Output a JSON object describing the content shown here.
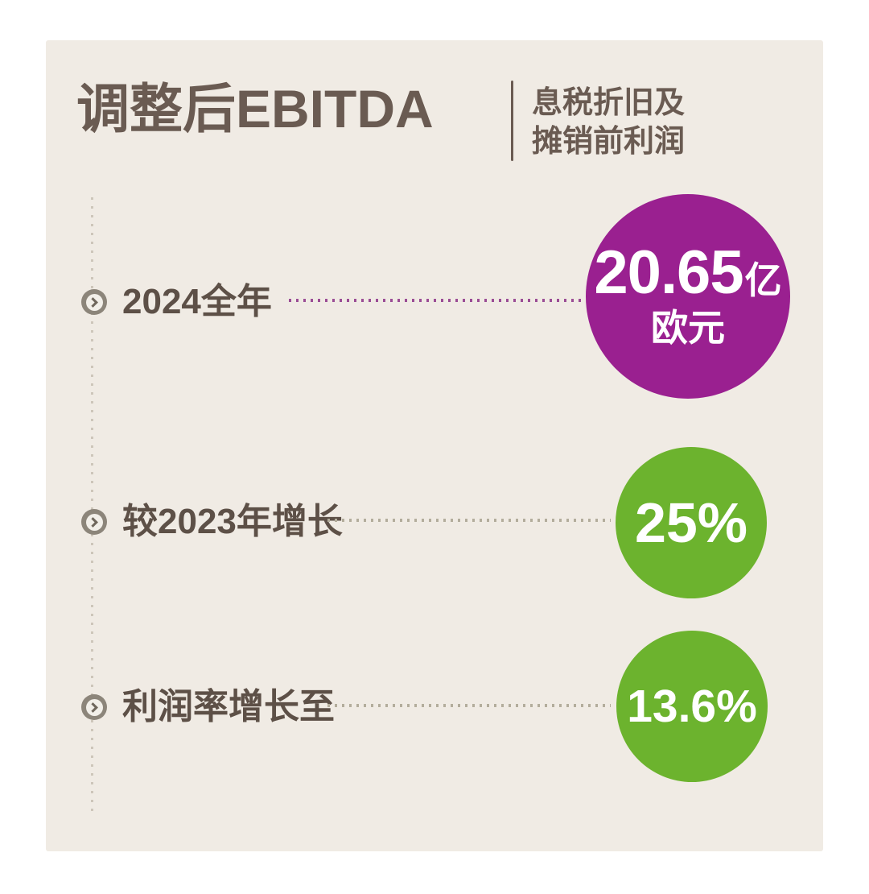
{
  "header": {
    "title": "调整后EBITDA",
    "subtitle_line1": "息税折旧及",
    "subtitle_line2": "摊销前利润"
  },
  "rows": [
    {
      "label": "2024全年",
      "value_main": "20.65",
      "value_unit": "亿",
      "value_sub": "欧元",
      "circle_color": "#9a2090"
    },
    {
      "label": "较2023年增长",
      "value": "25%",
      "circle_color": "#6cb32e"
    },
    {
      "label": "利润率增长至",
      "value": "13.6%",
      "circle_color": "#6cb32e"
    }
  ],
  "colors": {
    "page_bg": "#ffffff",
    "card_bg": "#f0ebe4",
    "heading_brown": "#6a5b52",
    "label_brown": "#5d5047",
    "accent_purple": "#9a2090",
    "accent_green": "#6cb32e",
    "leader_purple": "#9b4d95",
    "leader_olive": "#b3ad9c",
    "timeline_dots": "#cdc6ba",
    "bullet_gray": "#8c857a",
    "circle_text": "#ffffff"
  },
  "chart_data": {
    "type": "table",
    "title": "调整后EBITDA（息税折旧及摊销前利润）",
    "categories": [
      "2024全年",
      "较2023年增长",
      "利润率增长至"
    ],
    "values": [
      "20.65亿欧元",
      "25%",
      "13.6%"
    ],
    "numeric_values": [
      20.65,
      25,
      13.6
    ],
    "units": [
      "亿欧元",
      "%",
      "%"
    ],
    "legend_position": "none",
    "grid": false
  }
}
